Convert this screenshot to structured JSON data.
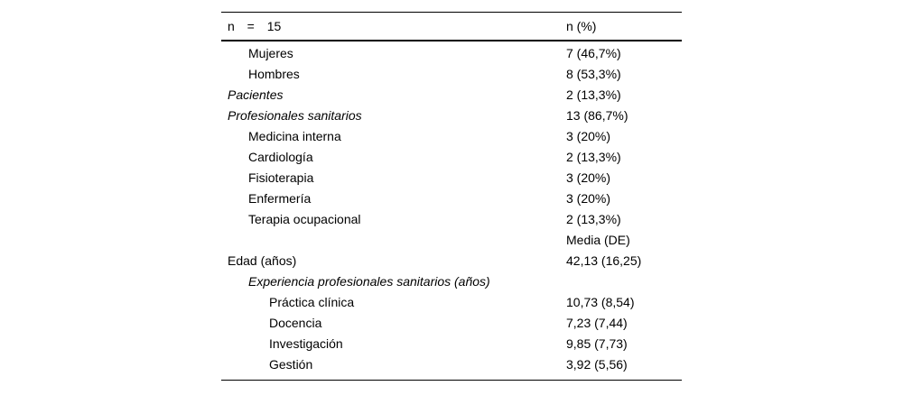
{
  "table": {
    "header": {
      "col1": "n = 15",
      "col2": "n (%)"
    },
    "rows": [
      {
        "label": "Mujeres",
        "value": "7 (46,7%)",
        "indent": 1,
        "italic": false
      },
      {
        "label": "Hombres",
        "value": "8 (53,3%)",
        "indent": 1,
        "italic": false
      },
      {
        "label": "Pacientes",
        "value": "2 (13,3%)",
        "indent": 0,
        "italic": true
      },
      {
        "label": "Profesionales sanitarios",
        "value": "13 (86,7%)",
        "indent": 0,
        "italic": true
      },
      {
        "label": "Medicina interna",
        "value": "3 (20%)",
        "indent": 1,
        "italic": false
      },
      {
        "label": "Cardiología",
        "value": "2 (13,3%)",
        "indent": 1,
        "italic": false
      },
      {
        "label": "Fisioterapia",
        "value": "3 (20%)",
        "indent": 1,
        "italic": false
      },
      {
        "label": "Enfermería",
        "value": "3 (20%)",
        "indent": 1,
        "italic": false
      },
      {
        "label": "Terapia ocupacional",
        "value": "2 (13,3%)",
        "indent": 1,
        "italic": false
      },
      {
        "label": "",
        "value": "Media (DE)",
        "indent": 1,
        "italic": false
      },
      {
        "label": "Edad (años)",
        "value": "42,13 (16,25)",
        "indent": 0,
        "italic": false
      },
      {
        "label": "Experiencia profesionales sanitarios (años)",
        "value": "",
        "indent": 1,
        "italic": true
      },
      {
        "label": "Práctica clínica",
        "value": "10,73 (8,54)",
        "indent": 2,
        "italic": false
      },
      {
        "label": "Docencia",
        "value": "7,23 (7,44)",
        "indent": 2,
        "italic": false
      },
      {
        "label": "Investigación",
        "value": "9,85 (7,73)",
        "indent": 2,
        "italic": false
      },
      {
        "label": "Gestión",
        "value": "3,92 (5,56)",
        "indent": 2,
        "italic": false
      }
    ],
    "rule_color": "#000000",
    "text_color": "#000000"
  }
}
